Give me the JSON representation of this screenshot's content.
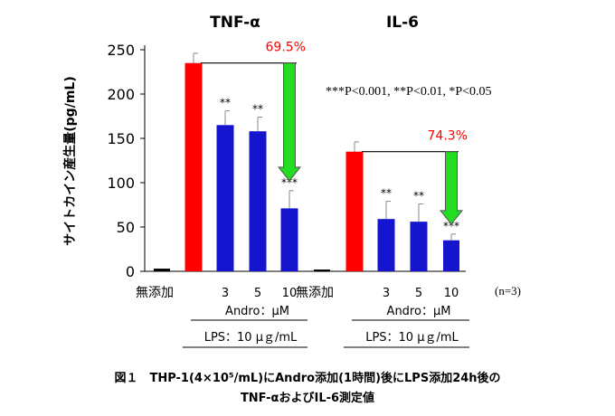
{
  "chart_data": {
    "type": "bar",
    "ylabel": "サイトカイン産生量(pg/mL)",
    "ylim": [
      0,
      250
    ],
    "yticks": [
      0,
      50,
      100,
      150,
      200,
      250
    ],
    "colors": {
      "control": "#000000",
      "lps": "#ff0000",
      "andro": "#1515d0",
      "arrow": "#22dd22",
      "pct": "#ff0000"
    },
    "legend_note": "***P<0.001, **P<0.01, *P<0.05",
    "n_note": "(n=3)",
    "groups": [
      {
        "title": "TNF-α",
        "bars": [
          {
            "label": "無添加",
            "value": 3,
            "err": 0,
            "sig": "",
            "kind": "control"
          },
          {
            "label": "",
            "value": 235,
            "err": 11,
            "sig": "",
            "kind": "lps"
          },
          {
            "label": "3",
            "value": 165,
            "err": 16,
            "sig": "**",
            "kind": "andro"
          },
          {
            "label": "5",
            "value": 158,
            "err": 16,
            "sig": "**",
            "kind": "andro"
          },
          {
            "label": "10",
            "value": 71,
            "err": 20,
            "sig": "***",
            "kind": "andro"
          }
        ],
        "reduction": "69.5%",
        "andro_label": "Andro：μM",
        "lps_label": "LPS：10 μｇ/mL"
      },
      {
        "title": "IL-6",
        "bars": [
          {
            "label": "無添加",
            "value": 2,
            "err": 0,
            "sig": "",
            "kind": "control"
          },
          {
            "label": "",
            "value": 135,
            "err": 11,
            "sig": "",
            "kind": "lps"
          },
          {
            "label": "3",
            "value": 59,
            "err": 20,
            "sig": "**",
            "kind": "andro"
          },
          {
            "label": "5",
            "value": 56,
            "err": 20,
            "sig": "**",
            "kind": "andro"
          },
          {
            "label": "10",
            "value": 35,
            "err": 7,
            "sig": "***",
            "kind": "andro"
          }
        ],
        "reduction": "74.3%",
        "andro_label": "Andro：μM",
        "lps_label": "LPS：10 μｇ/mL"
      }
    ]
  },
  "caption": {
    "line1": "図１　THP-1(4×10⁵/mL)にAndro添加(1時間)後にLPS添加24h後の",
    "line2": "TNF-αおよびIL-6測定値"
  }
}
